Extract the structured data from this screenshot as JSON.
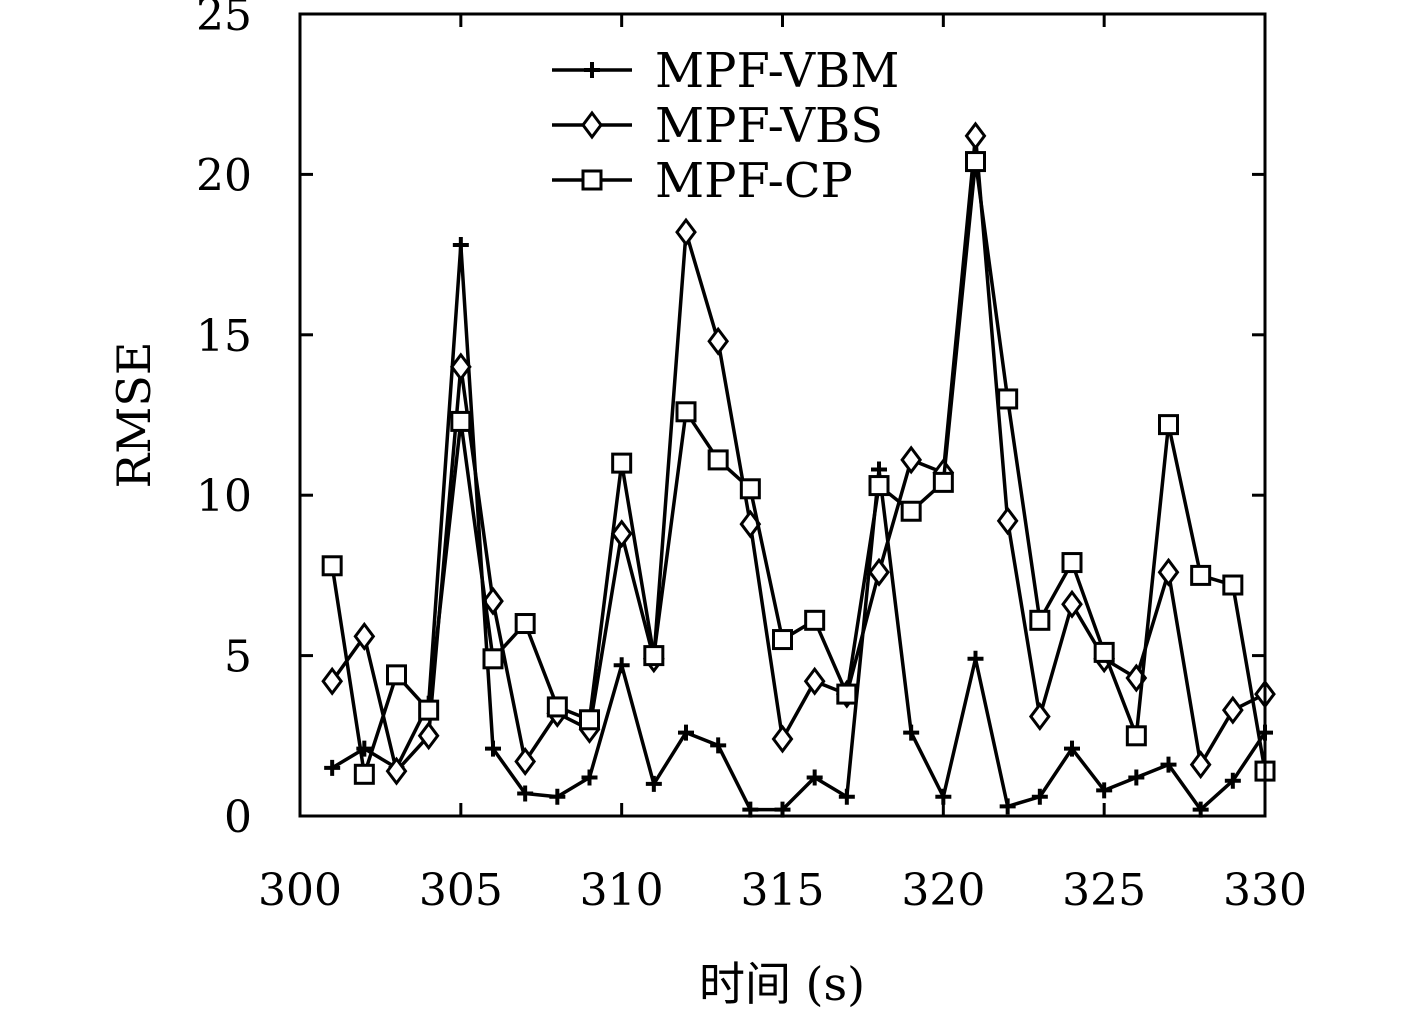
{
  "chart_data": {
    "type": "line",
    "title": "",
    "xlabel": "时间 (s)",
    "ylabel": "RMSE",
    "xlim": [
      300,
      330
    ],
    "ylim": [
      0,
      25
    ],
    "xticks": [
      300,
      305,
      310,
      315,
      320,
      325,
      330
    ],
    "yticks": [
      0,
      5,
      10,
      15,
      20,
      25
    ],
    "grid": false,
    "legend_position": "top-center",
    "x": [
      301,
      302,
      303,
      304,
      305,
      306,
      307,
      308,
      309,
      310,
      311,
      312,
      313,
      314,
      315,
      316,
      317,
      318,
      319,
      320,
      321,
      322,
      323,
      324,
      325,
      326,
      327,
      328,
      329,
      330
    ],
    "series": [
      {
        "name": "MPF-VBM",
        "marker": "plus",
        "color": "#000000",
        "values": [
          1.5,
          2.1,
          1.5,
          3.5,
          17.8,
          2.1,
          0.7,
          0.6,
          1.2,
          4.7,
          1.0,
          2.6,
          2.2,
          0.2,
          0.2,
          1.2,
          0.6,
          10.8,
          2.6,
          0.6,
          4.9,
          0.3,
          0.6,
          2.1,
          0.8,
          1.2,
          1.6,
          0.2,
          1.1,
          2.6
        ]
      },
      {
        "name": "MPF-VBS",
        "marker": "diamond",
        "color": "#000000",
        "values": [
          4.2,
          5.6,
          1.4,
          2.5,
          14.0,
          6.7,
          1.7,
          3.2,
          2.7,
          8.8,
          4.9,
          18.2,
          14.8,
          9.1,
          2.4,
          4.2,
          3.8,
          7.6,
          11.1,
          10.7,
          21.2,
          9.2,
          3.1,
          6.6,
          4.9,
          4.3,
          7.6,
          1.6,
          3.3,
          3.8
        ]
      },
      {
        "name": "MPF-CP",
        "marker": "square",
        "color": "#000000",
        "values": [
          7.8,
          1.3,
          4.4,
          3.3,
          12.3,
          4.9,
          6.0,
          3.4,
          3.0,
          11.0,
          5.0,
          12.6,
          11.1,
          10.2,
          5.5,
          6.1,
          3.8,
          10.3,
          9.5,
          10.4,
          20.4,
          13.0,
          6.1,
          7.9,
          5.1,
          2.5,
          12.2,
          7.5,
          7.2,
          1.4
        ]
      }
    ]
  }
}
